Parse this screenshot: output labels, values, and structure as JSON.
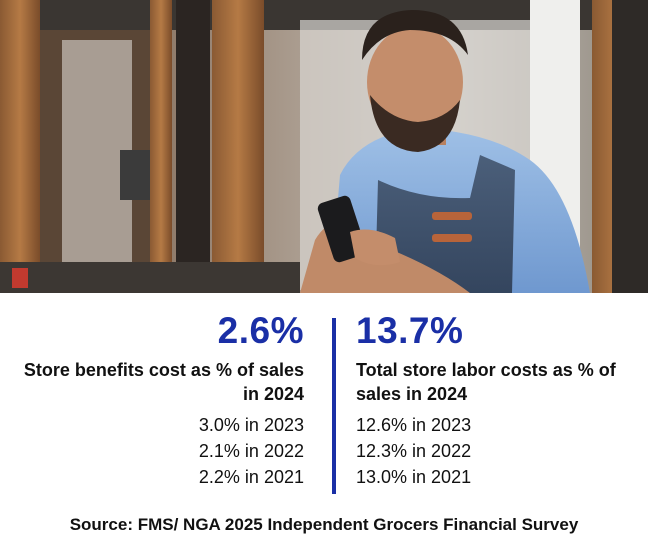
{
  "photo": {
    "subject": "store-owner-with-phone"
  },
  "left_stat": {
    "value": "2.6%",
    "description": "Store benefits cost as % of sales in 2024",
    "history": [
      "3.0% in 2023",
      "2.1% in 2022",
      "2.2% in 2021"
    ]
  },
  "right_stat": {
    "value": "13.7%",
    "description": "Total store labor costs as % of sales in 2024",
    "history": [
      "12.6% in 2023",
      "12.3% in 2022",
      "13.0% in 2021"
    ]
  },
  "source": "Source: FMS/ NGA 2025 Independent Grocers Financial Survey",
  "colors": {
    "accent": "#1a2fa6",
    "text": "#111111",
    "background": "#ffffff"
  }
}
